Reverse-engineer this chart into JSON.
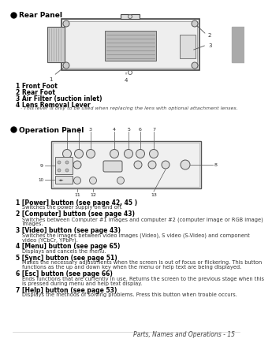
{
  "bg_color": "#ffffff",
  "tab_color": "#aaaaaa",
  "title1": "Rear Panel",
  "title2": "Operation Panel",
  "footer": "Parts, Names and Operations - 15",
  "rear_labels": [
    [
      "1 Front Foot",
      false
    ],
    [
      "2 Rear Foot",
      false
    ],
    [
      "3 Air Filter (suction inlet)",
      false
    ],
    [
      "4 Lens Removal Lever",
      true
    ]
  ],
  "rear_note": "· This lever is only to be used when replacing the lens with optional attachment lenses.",
  "op_items": [
    [
      "1 [Power] button (",
      "see page 42, 45",
      " )",
      "Switches the power supply on and off."
    ],
    [
      "2 [Computer] button (",
      "see page 43",
      ")",
      "Switches between Computer #1 images and computer #2 (computer image or RGB image)\nimages."
    ],
    [
      "3 [Video] button (",
      "see page 43",
      ")",
      "Switches the images between video images (Video), S video (S-Video) and component\nvideo (YCbCr, YPbPr)."
    ],
    [
      "4 [Menu] button (",
      "see page 65",
      ")",
      "Displays and cancels the menu."
    ],
    [
      "5 [Sync] button (",
      "see page 51",
      ")",
      "Makes the necessary adjustments when the screen is out of focus or flickering. This button\nfunctions as the up and down key when the menu or help text are being displayed."
    ],
    [
      "6 [Esc] button (",
      "see page 66",
      ")",
      "Ends functions that are currently in use. Returns the screen to the previous stage when this\nis pressed during menu and help text display."
    ],
    [
      "7 [Help] button (",
      "see page 53",
      ")",
      "Displays the methods of solving problems. Press this button when trouble occurs."
    ]
  ]
}
